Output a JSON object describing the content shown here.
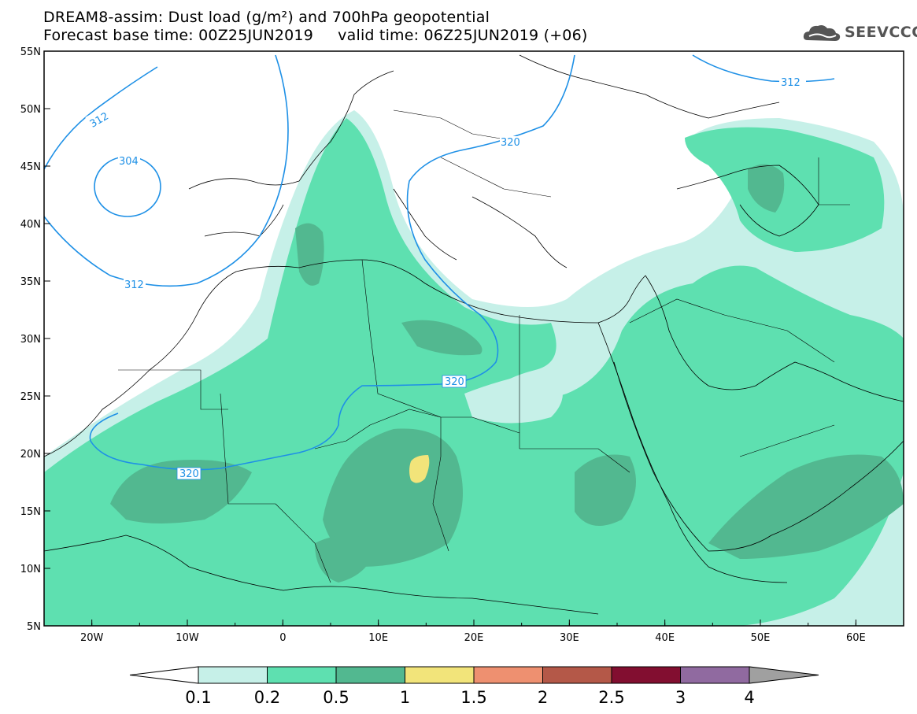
{
  "title": {
    "line1": "DREAM8-assim: Dust load (g/m²) and 700hPa geopotential",
    "line2": "Forecast base time: 00Z25JUN2019     valid time: 06Z25JUN2019 (+06)"
  },
  "logo": {
    "text": "SEEVCCC",
    "icon": "cloud-logo-icon"
  },
  "map": {
    "lat_labels": [
      "55N",
      "50N",
      "45N",
      "40N",
      "35N",
      "30N",
      "25N",
      "20N",
      "15N",
      "10N",
      "5N"
    ],
    "lon_labels": [
      "20W",
      "10W",
      "0",
      "10E",
      "20E",
      "30E",
      "40E",
      "50E",
      "60E"
    ],
    "lon_range": [
      -25,
      65
    ],
    "lat_range": [
      5,
      55
    ],
    "contour_labels": [
      "312",
      "304",
      "312",
      "320",
      "312",
      "320",
      "320"
    ],
    "contour_color": "#1e90e6"
  },
  "colorbar": {
    "labels": [
      "0.1",
      "0.2",
      "0.5",
      "1",
      "1.5",
      "2",
      "2.5",
      "3",
      "4"
    ],
    "colors": [
      "#c6f0e8",
      "#5ee0b0",
      "#52b890",
      "#f2e47a",
      "#ee9070",
      "#b45848",
      "#820e30",
      "#906aa0"
    ],
    "below_color": "#ffffff",
    "above_color": "#a0a0a0"
  }
}
